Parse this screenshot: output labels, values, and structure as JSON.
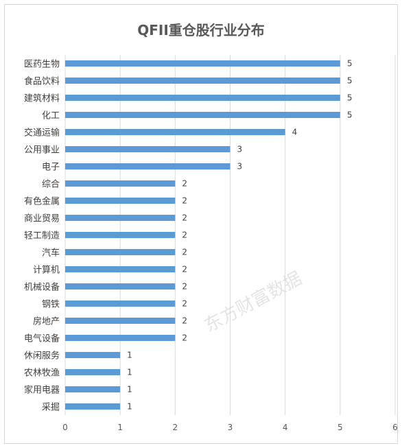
{
  "chart_data": {
    "type": "bar",
    "orientation": "horizontal",
    "title": "QFII重仓股行业分布",
    "xlabel": "",
    "ylabel": "",
    "xlim": [
      0,
      6
    ],
    "xticks": [
      0,
      1,
      2,
      3,
      4,
      5,
      6
    ],
    "grid": true,
    "legend": "none",
    "bar_color": "#5b9bd5",
    "categories": [
      "医药生物",
      "食品饮料",
      "建筑材料",
      "化工",
      "交通运输",
      "公用事业",
      "电子",
      "综合",
      "有色金属",
      "商业贸易",
      "轻工制造",
      "汽车",
      "计算机",
      "机械设备",
      "钢铁",
      "房地产",
      "电气设备",
      "休闲服务",
      "农林牧渔",
      "家用电器",
      "采掘"
    ],
    "values": [
      5,
      5,
      5,
      5,
      4,
      3,
      3,
      2,
      2,
      2,
      2,
      2,
      2,
      2,
      2,
      2,
      2,
      1,
      1,
      1,
      1
    ]
  },
  "watermark": "东方财富数据"
}
